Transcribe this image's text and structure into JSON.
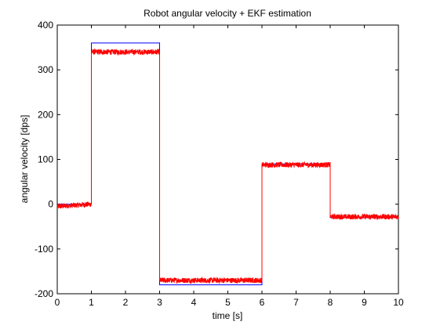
{
  "chart_data": {
    "type": "line",
    "title": "Robot angular velocity + EKF estimation",
    "xlabel": "time [s]",
    "ylabel": "angular velocity [dps]",
    "xlim": [
      0,
      10
    ],
    "ylim": [
      -200,
      400
    ],
    "x_ticks": [
      0,
      1,
      2,
      3,
      4,
      5,
      6,
      7,
      8,
      9,
      10
    ],
    "y_ticks": [
      -200,
      -100,
      0,
      100,
      200,
      300,
      400
    ],
    "grid": false,
    "series": [
      {
        "color": "#0000ff",
        "points": [
          [
            0,
            0
          ],
          [
            1,
            0
          ],
          [
            1,
            360
          ],
          [
            3,
            360
          ],
          [
            3,
            -180
          ],
          [
            6,
            -180
          ],
          [
            6,
            90
          ],
          [
            8,
            90
          ],
          [
            8,
            -30
          ],
          [
            10,
            -30
          ]
        ]
      },
      {
        "color": "#ff0000",
        "noise_amplitude": 6,
        "points": [
          [
            0,
            -5
          ],
          [
            1,
            0
          ],
          [
            1,
            340
          ],
          [
            3,
            340
          ],
          [
            3,
            -170
          ],
          [
            6,
            -170
          ],
          [
            6,
            88
          ],
          [
            8,
            88
          ],
          [
            8,
            -28
          ],
          [
            10,
            -28
          ]
        ]
      }
    ]
  }
}
